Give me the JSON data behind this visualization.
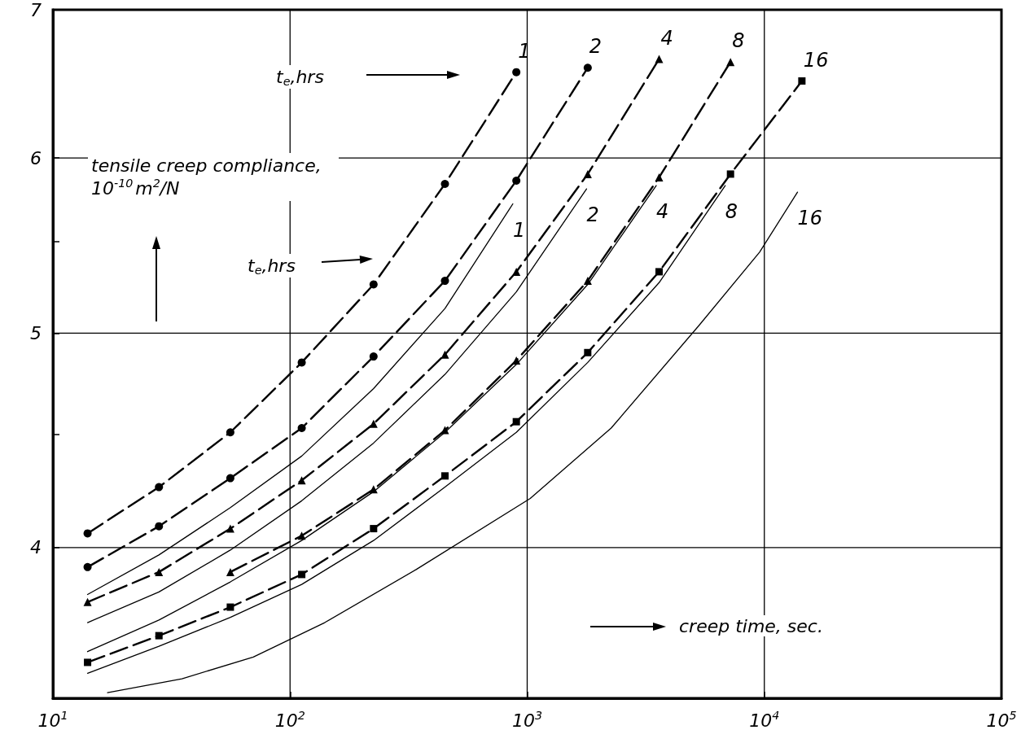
{
  "chart_data": {
    "type": "line",
    "xlabel": "creep time, sec.",
    "ylabel": "tensile creep compliance,10$^{-10}$m$^{2}$/N",
    "annotations": [
      "t$_{e}$,hrs",
      "t$_{e}$,hrs"
    ],
    "log": "xy",
    "xlim": [
      10,
      100000
    ],
    "ylim": [
      3.42,
      7
    ],
    "xticks": [
      {
        "value": 10,
        "label": "10$^{1}$"
      },
      {
        "value": 100,
        "label": "10$^{2}$"
      },
      {
        "value": 1000,
        "label": "10$^{3}$"
      },
      {
        "value": 10000,
        "label": "10$^{4}$"
      },
      {
        "value": 100000,
        "label": "10$^{5}$"
      }
    ],
    "yticks": [
      4,
      {
        "value": 4.5,
        "label": null
      },
      5,
      {
        "value": 5.5,
        "label": null
      },
      6,
      7
    ],
    "grid": true,
    "legend": false,
    "series": [
      {
        "name": "1",
        "color": "#000000",
        "line_style": "dashed",
        "marker": "circle",
        "x": [
          14,
          28,
          56,
          112,
          225,
          450,
          900
        ],
        "values": [
          4.06,
          4.26,
          4.51,
          4.85,
          5.26,
          5.84,
          6.56
        ]
      },
      {
        "name": "2",
        "color": "#000000",
        "line_style": "dashed",
        "marker": "circle",
        "x": [
          14,
          28,
          56,
          112,
          225,
          450,
          900,
          1800
        ],
        "values": [
          3.92,
          4.09,
          4.3,
          4.53,
          4.88,
          5.28,
          5.86,
          6.59
        ]
      },
      {
        "name": "4",
        "color": "#000000",
        "line_style": "dashed",
        "marker": "triangle",
        "x": [
          14,
          28,
          56,
          112,
          225,
          450,
          900,
          1800,
          3600
        ],
        "values": [
          3.78,
          3.9,
          4.08,
          4.29,
          4.55,
          4.89,
          5.33,
          5.9,
          6.65
        ]
      },
      {
        "name": "8",
        "color": "#000000",
        "line_style": "dashed",
        "marker": "triangle",
        "x": [
          56,
          112,
          225,
          450,
          900,
          1800,
          3600,
          7200
        ],
        "values": [
          3.9,
          4.05,
          4.25,
          4.52,
          4.86,
          5.28,
          5.88,
          6.63
        ]
      },
      {
        "name": "16",
        "color": "#000000",
        "line_style": "dashed",
        "marker": "square",
        "x": [
          14,
          28,
          56,
          112,
          225,
          450,
          900,
          1800,
          3600,
          7200,
          14400
        ],
        "values": [
          3.55,
          3.65,
          3.76,
          3.89,
          4.08,
          4.31,
          4.56,
          4.9,
          5.33,
          5.9,
          6.5
        ]
      },
      {
        "name": "1",
        "color": "#000000",
        "line_style": "solid",
        "marker": "none",
        "x": [
          14,
          28,
          56,
          112,
          225,
          450,
          870
        ],
        "values": [
          3.81,
          3.97,
          4.17,
          4.4,
          4.72,
          5.13,
          5.72
        ]
      },
      {
        "name": "2",
        "color": "#000000",
        "line_style": "solid",
        "marker": "none",
        "x": [
          14,
          28,
          56,
          112,
          225,
          450,
          900,
          1780
        ],
        "values": [
          3.7,
          3.82,
          3.99,
          4.2,
          4.46,
          4.79,
          5.22,
          5.81
        ]
      },
      {
        "name": "4",
        "color": "#000000",
        "line_style": "solid",
        "marker": "none",
        "x": [
          14,
          28,
          56,
          112,
          225,
          450,
          900,
          1800,
          3500
        ],
        "values": [
          3.59,
          3.71,
          3.86,
          4.03,
          4.24,
          4.51,
          4.84,
          5.26,
          5.83
        ]
      },
      {
        "name": "8",
        "color": "#000000",
        "line_style": "solid",
        "marker": "none",
        "x": [
          14,
          28,
          56,
          112,
          225,
          450,
          900,
          1800,
          3600,
          6840
        ],
        "values": [
          3.51,
          3.61,
          3.72,
          3.85,
          4.03,
          4.26,
          4.51,
          4.85,
          5.27,
          5.83
        ]
      },
      {
        "name": "16",
        "color": "#000000",
        "line_style": "solid",
        "marker": "none",
        "x": [
          17,
          35,
          70,
          140,
          340,
          1030,
          2260,
          5300,
          9550,
          13800
        ],
        "values": [
          3.44,
          3.49,
          3.57,
          3.7,
          3.91,
          4.21,
          4.53,
          5.04,
          5.44,
          5.79
        ]
      }
    ]
  }
}
